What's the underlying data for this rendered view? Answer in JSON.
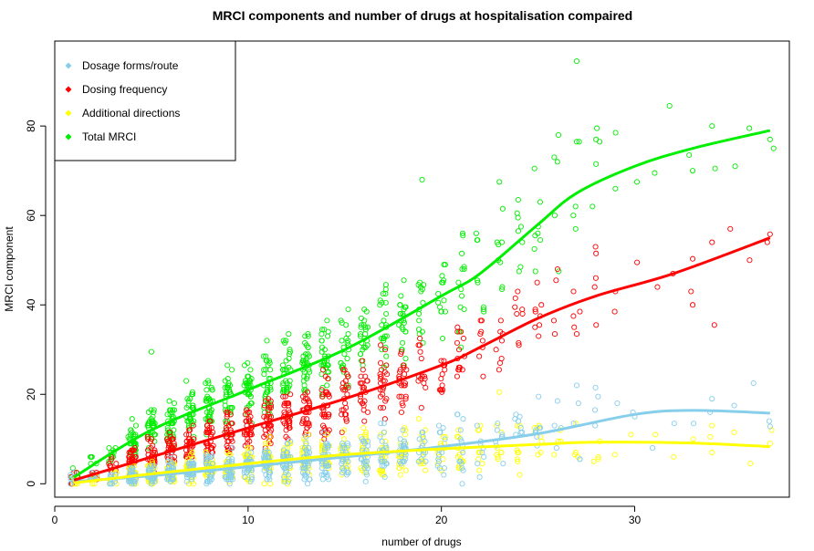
{
  "chart_data": {
    "type": "scatter",
    "title": "MRCI components and number of drugs at hospitalisation compaired",
    "xlabel": "number of drugs",
    "ylabel": "MRCI component",
    "xlim": [
      0,
      38
    ],
    "ylim": [
      -3,
      99
    ],
    "xticks": [
      0,
      10,
      20,
      30
    ],
    "yticks": [
      0,
      20,
      40,
      60,
      80
    ],
    "legend_position": "top-left",
    "series": [
      {
        "name": "Dosage forms/route",
        "color": "#87CEEB",
        "curve": [
          [
            1,
            0.5
          ],
          [
            5,
            1.8
          ],
          [
            10,
            3.8
          ],
          [
            15,
            6
          ],
          [
            20,
            8.3
          ],
          [
            25,
            11.2
          ],
          [
            30,
            15.5
          ],
          [
            33,
            16.4
          ],
          [
            37,
            15.8
          ]
        ],
        "spread_frac": 0.55,
        "spread_add": 1.5
      },
      {
        "name": "Dosing frequency",
        "color": "#FF0000",
        "curve": [
          [
            1,
            0.8
          ],
          [
            5,
            6
          ],
          [
            10,
            12.5
          ],
          [
            15,
            19
          ],
          [
            20,
            26.5
          ],
          [
            22,
            30.5
          ],
          [
            25,
            37
          ],
          [
            28,
            42
          ],
          [
            32,
            47
          ],
          [
            37,
            55
          ]
        ],
        "spread_frac": 0.22,
        "spread_add": 2
      },
      {
        "name": "Additional directions",
        "color": "#FFFF00",
        "curve": [
          [
            1,
            0.2
          ],
          [
            5,
            2.2
          ],
          [
            10,
            4.5
          ],
          [
            15,
            6.5
          ],
          [
            20,
            7.8
          ],
          [
            25,
            8.8
          ],
          [
            28,
            9.3
          ],
          [
            33,
            9.1
          ],
          [
            37,
            8.3
          ]
        ],
        "spread_frac": 0.5,
        "spread_add": 1.5
      },
      {
        "name": "Total MRCI",
        "color": "#00EE00",
        "curve": [
          [
            1,
            1.5
          ],
          [
            5,
            12
          ],
          [
            10,
            21
          ],
          [
            15,
            30
          ],
          [
            20,
            42
          ],
          [
            22,
            47
          ],
          [
            25,
            58
          ],
          [
            27,
            65
          ],
          [
            30,
            71
          ],
          [
            33,
            75
          ],
          [
            37,
            79
          ]
        ],
        "spread_frac": 0.2,
        "spread_add": 2
      }
    ],
    "highlight_points": [
      {
        "series": "Total MRCI",
        "points": [
          [
            27,
            94.5
          ],
          [
            34,
            80
          ],
          [
            37,
            77
          ],
          [
            27,
            76.5
          ],
          [
            28,
            71.5
          ],
          [
            26,
            72
          ],
          [
            33,
            70
          ],
          [
            29,
            66
          ],
          [
            19,
            68
          ],
          [
            23,
            67.5
          ],
          [
            4,
            14.5
          ],
          [
            5,
            29.5
          ]
        ]
      },
      {
        "series": "Dosing frequency",
        "points": [
          [
            37,
            55.8
          ],
          [
            34,
            54
          ],
          [
            28,
            51.5
          ],
          [
            33,
            50.3
          ],
          [
            33,
            40
          ],
          [
            29,
            43
          ],
          [
            27,
            33.5
          ]
        ]
      },
      {
        "series": "Dosage forms/route",
        "points": [
          [
            27,
            22
          ],
          [
            34,
            19
          ],
          [
            37,
            12.8
          ],
          [
            30,
            15
          ]
        ]
      },
      {
        "series": "Additional directions",
        "points": [
          [
            23,
            20.5
          ],
          [
            34,
            13
          ],
          [
            37,
            9
          ],
          [
            34,
            7
          ]
        ]
      }
    ]
  }
}
